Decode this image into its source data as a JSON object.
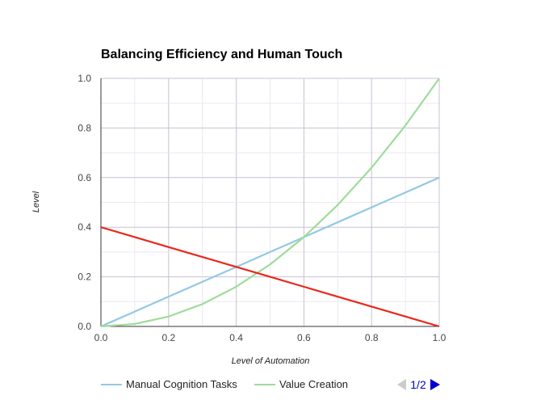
{
  "chart_data": {
    "type": "line",
    "title": "Balancing Efficiency and Human Touch",
    "xlabel": "Level of Automation",
    "ylabel": "Level",
    "xlim": [
      0,
      1
    ],
    "ylim": [
      0,
      1
    ],
    "x_ticks": [
      "0.0",
      "0.2",
      "0.4",
      "0.6",
      "0.8",
      "1.0"
    ],
    "y_ticks": [
      "0.0",
      "0.2",
      "0.4",
      "0.6",
      "0.8",
      "1.0"
    ],
    "grid": true,
    "legend_position": "bottom",
    "series": [
      {
        "name": "Manual Cognition Tasks",
        "color": "#93c9e3",
        "x": [
          0,
          0.1,
          0.2,
          0.3,
          0.4,
          0.5,
          0.6,
          0.7,
          0.8,
          0.9,
          1.0
        ],
        "y": [
          0,
          0.06,
          0.12,
          0.18,
          0.24,
          0.3,
          0.36,
          0.42,
          0.48,
          0.54,
          0.6
        ]
      },
      {
        "name": "Value Creation",
        "color": "#9edc9a",
        "x": [
          0,
          0.1,
          0.2,
          0.3,
          0.4,
          0.5,
          0.6,
          0.7,
          0.8,
          0.9,
          1.0
        ],
        "y": [
          0,
          0.01,
          0.04,
          0.09,
          0.16,
          0.25,
          0.36,
          0.49,
          0.64,
          0.81,
          1.0
        ]
      },
      {
        "name": "",
        "color": "#e8281c",
        "x": [
          0,
          0.1,
          0.2,
          0.3,
          0.4,
          0.5,
          0.6,
          0.7,
          0.8,
          0.9,
          1.0
        ],
        "y": [
          0.4,
          0.36,
          0.32,
          0.28,
          0.24,
          0.2,
          0.16,
          0.12,
          0.08,
          0.04,
          0
        ]
      }
    ]
  },
  "legend": {
    "items": [
      {
        "label": "Manual Cognition Tasks",
        "color": "#93c9e3"
      },
      {
        "label": "Value Creation",
        "color": "#9edc9a"
      }
    ],
    "pager": {
      "text": "1/2",
      "prev_icon": "triangle-left-icon",
      "next_icon": "triangle-right-icon"
    }
  }
}
